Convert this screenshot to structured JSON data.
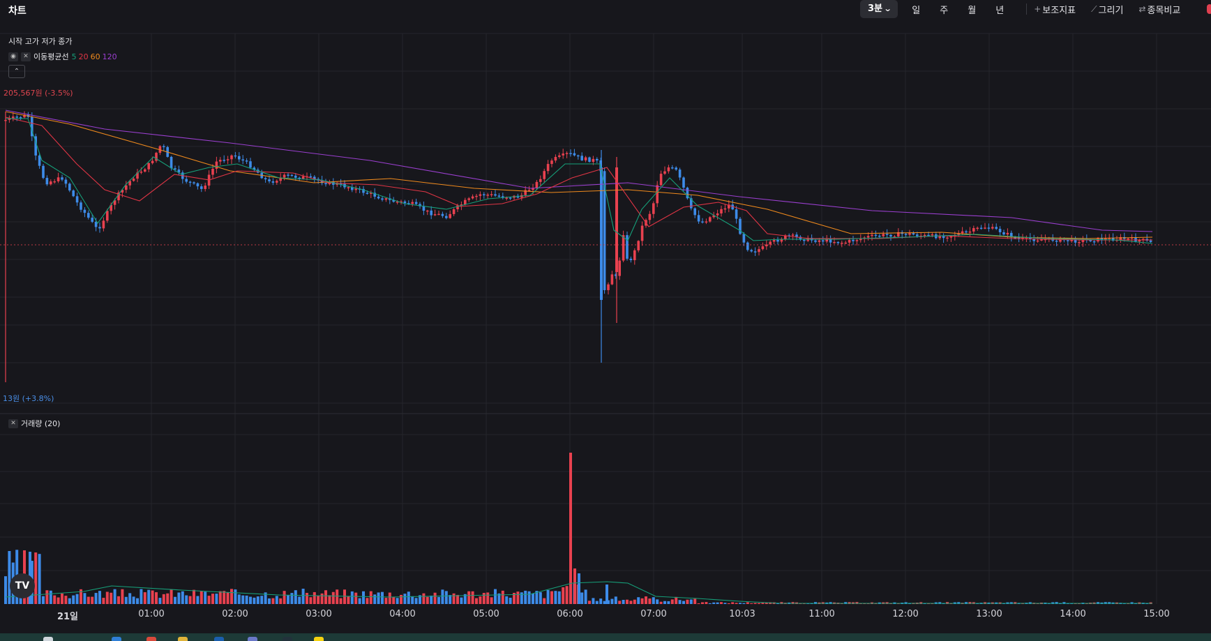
{
  "header": {
    "title": "차트"
  },
  "toolbar": {
    "timeframe_selected": "3분",
    "timeframes": [
      "일",
      "주",
      "월",
      "년"
    ],
    "indicators_label": "보조지표",
    "draw_label": "그리기",
    "compare_label": "종목비교"
  },
  "legend": {
    "ohlc_label": "시작 고가 저가 종가",
    "ma_name": "이동평균선",
    "ma_periods": [
      {
        "value": "5",
        "color": "#16a07a"
      },
      {
        "value": "20",
        "color": "#e03545"
      },
      {
        "value": "60",
        "color": "#f08a1c"
      },
      {
        "value": "120",
        "color": "#9b3fd0"
      }
    ],
    "collapse_icon": "chevron-up-icon"
  },
  "price_pane": {
    "high_label": "205,567원 (-3.5%)",
    "low_label": "13원 (+3.8%)"
  },
  "volume_pane": {
    "label": "거래량 (20)"
  },
  "colors": {
    "up": "#e8414f",
    "down": "#3d8be8",
    "background": "#17171c",
    "grid": "#24252b"
  },
  "chart_data": {
    "type": "candlestick",
    "x_ticks": [
      "21일",
      "01:00",
      "02:00",
      "03:00",
      "04:00",
      "05:00",
      "06:00",
      "07:00",
      "10:03",
      "11:00",
      "12:00",
      "13:00",
      "14:00",
      "15:00"
    ],
    "price_extremes": {
      "high": "205,567원",
      "high_change": "-3.5%",
      "low": "13원",
      "low_change": "+3.8%"
    },
    "moving_averages": [
      "5",
      "20",
      "60",
      "120"
    ],
    "volume_period": 20
  }
}
